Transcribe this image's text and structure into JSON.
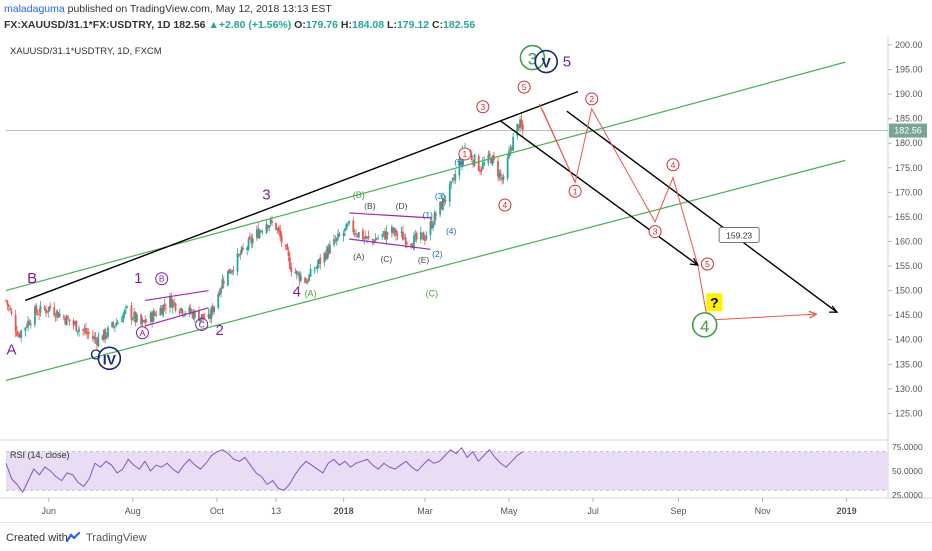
{
  "header": {
    "author": "maladaguma",
    "published": "published on TradingView.com, May 12, 2018 13:13 EST",
    "symbol": "FX:XAUUSD/31.1*FX:USDTRY, 1D",
    "last": "182.56",
    "change": "+2.80 (+1.56%)",
    "open_label": "O:",
    "open": "179.76",
    "high_label": "H:",
    "high": "184.08",
    "low_label": "L:",
    "low": "179.12",
    "close_label": "C:",
    "close": "182.56"
  },
  "footer": {
    "created_with": "Created with",
    "brand": "TradingView"
  },
  "colors": {
    "candle_up": "#26a69a",
    "candle_down": "#ef5350",
    "channel_green": "#4caf50",
    "trend_black": "#000000",
    "projection_red": "#ef5350",
    "wave_purple": "#7b1fa2",
    "wave_navy": "#1a237e",
    "wave_blue": "#1565c0",
    "rsi_line": "#7e57c2",
    "rsi_band": "#e9dcf5",
    "price_tag": "#7aa49a",
    "question_box": "#fff200"
  },
  "chart_data": [
    {
      "type": "candlestick",
      "title": "XAUUSD/31.1*USDTRY, 1D, FXCM",
      "xlabel": "",
      "ylabel": "",
      "x_tick_labels": [
        "Jun",
        "Aug",
        "Oct",
        "13",
        "2018",
        "Mar",
        "May",
        "Jul",
        "Sep",
        "Nov",
        "2019"
      ],
      "y_tick_labels": [
        "125.00",
        "130.00",
        "135.00",
        "140.00",
        "145.00",
        "150.00",
        "155.00",
        "160.00",
        "165.00",
        "170.00",
        "175.00",
        "180.00",
        "185.00",
        "190.00",
        "195.00",
        "200.00"
      ],
      "ylim": [
        120,
        201
      ],
      "last_price_label": "182.56",
      "price_path": [
        [
          "2017-05-01",
          148
        ],
        [
          "2017-05-10",
          141
        ],
        [
          "2017-05-22",
          145.5
        ],
        [
          "2017-06-02",
          146.5
        ],
        [
          "2017-06-20",
          143
        ],
        [
          "2017-07-05",
          140
        ],
        [
          "2017-07-12",
          141
        ],
        [
          "2017-07-28",
          146
        ],
        [
          "2017-08-07",
          143
        ],
        [
          "2017-08-16",
          145
        ],
        [
          "2017-08-28",
          148
        ],
        [
          "2017-09-07",
          146
        ],
        [
          "2017-09-17",
          145
        ],
        [
          "2017-09-25",
          144
        ],
        [
          "2017-10-05",
          152
        ],
        [
          "2017-10-20",
          158
        ],
        [
          "2017-11-06",
          164
        ],
        [
          "2017-11-13",
          163
        ],
        [
          "2017-11-25",
          154
        ],
        [
          "2017-12-05",
          152
        ],
        [
          "2017-12-20",
          158
        ],
        [
          "2018-01-05",
          163
        ],
        [
          "2018-01-20",
          160
        ],
        [
          "2018-02-05",
          162
        ],
        [
          "2018-02-20",
          160
        ],
        [
          "2018-03-01",
          161
        ],
        [
          "2018-03-10",
          166
        ],
        [
          "2018-03-20",
          171
        ],
        [
          "2018-03-30",
          179
        ],
        [
          "2018-04-10",
          175
        ],
        [
          "2018-04-18",
          177
        ],
        [
          "2018-04-27",
          172
        ],
        [
          "2018-05-02",
          179
        ],
        [
          "2018-05-08",
          184
        ],
        [
          "2018-05-11",
          182.56
        ]
      ],
      "series": [
        {
          "name": "channel",
          "kind": "line",
          "points": [
            [
              "2017-05-01",
              150.0
            ],
            [
              "2018-12-31",
              196.5
            ]
          ]
        },
        {
          "name": "channel",
          "kind": "line",
          "points": [
            [
              "2017-05-01",
              131.7
            ],
            [
              "2018-12-31",
              176.5
            ]
          ]
        },
        {
          "name": "trendline",
          "kind": "line",
          "points": [
            [
              "2017-05-15",
              148.0
            ],
            [
              "2018-06-20",
              190.5
            ]
          ]
        },
        {
          "name": "trendline",
          "kind": "line",
          "points": [
            [
              "2018-04-25",
              184.5
            ],
            [
              "2018-09-15",
              155.2
            ]
          ]
        },
        {
          "name": "trendline",
          "kind": "line",
          "points": [
            [
              "2018-06-12",
              186.5
            ],
            [
              "2018-12-25",
              145.6
            ]
          ]
        },
        {
          "name": "projection",
          "kind": "line",
          "points": [
            [
              "2018-05-23",
              188
            ],
            [
              "2018-06-18",
              172
            ],
            [
              "2018-06-30",
              187
            ],
            [
              "2018-08-15",
              164
            ],
            [
              "2018-08-28",
              173
            ],
            [
              "2018-09-15",
              155.2
            ],
            [
              "2018-09-22",
              144
            ],
            [
              "2018-12-10",
              145.2
            ]
          ]
        },
        {
          "name": "projection",
          "kind": "line",
          "points": [
            [
              "2018-05-25",
              187
            ],
            [
              "2018-06-18",
              172
            ]
          ]
        },
        {
          "name": "wedge",
          "kind": "line",
          "points": [
            [
              "2017-08-10",
              148.0
            ],
            [
              "2017-09-25",
              150.0
            ]
          ]
        },
        {
          "name": "wedge",
          "kind": "line",
          "points": [
            [
              "2017-08-10",
              142.8
            ],
            [
              "2017-09-25",
              146.5
            ]
          ]
        },
        {
          "name": "triangle",
          "kind": "line",
          "points": [
            [
              "2018-01-05",
              165.8
            ],
            [
              "2018-03-05",
              164.8
            ]
          ]
        },
        {
          "name": "triangle",
          "kind": "line",
          "points": [
            [
              "2018-01-05",
              160.5
            ],
            [
              "2018-03-05",
              158.4
            ]
          ]
        }
      ],
      "annotations": [
        {
          "text": "A",
          "x": "2017-05-05",
          "y": 137,
          "style": "purple-large"
        },
        {
          "text": "B",
          "x": "2017-05-20",
          "y": 151.5,
          "style": "purple-large"
        },
        {
          "text": "C",
          "x": "2017-07-05",
          "y": 136,
          "style": "navy-large"
        },
        {
          "text": "IV",
          "x": "2017-07-15",
          "y": 135.2,
          "style": "navy-circle"
        },
        {
          "text": "1",
          "x": "2017-08-05",
          "y": 151.5,
          "style": "purple-large"
        },
        {
          "text": "B",
          "x": "2017-08-22",
          "y": 151.8,
          "style": "purple-circle-small"
        },
        {
          "text": "A",
          "x": "2017-08-08",
          "y": 140.8,
          "style": "purple-circle-small"
        },
        {
          "text": "C",
          "x": "2017-09-20",
          "y": 142.5,
          "style": "purple-circle-small"
        },
        {
          "text": "2",
          "x": "2017-10-03",
          "y": 141,
          "style": "purple-large"
        },
        {
          "text": "3",
          "x": "2017-11-06",
          "y": 168.5,
          "style": "purple-large"
        },
        {
          "text": "4",
          "x": "2017-11-28",
          "y": 148.8,
          "style": "purple-large"
        },
        {
          "text": "(A)",
          "x": "2017-12-08",
          "y": 148.8,
          "style": "green-small"
        },
        {
          "text": "(B)",
          "x": "2018-01-12",
          "y": 168.8,
          "style": "green-small"
        },
        {
          "text": "(B)",
          "x": "2018-01-20",
          "y": 166.6,
          "style": "dark-small"
        },
        {
          "text": "(D)",
          "x": "2018-02-12",
          "y": 166.6,
          "style": "dark-small"
        },
        {
          "text": "(A)",
          "x": "2018-01-12",
          "y": 156.3,
          "style": "dark-small"
        },
        {
          "text": "(C)",
          "x": "2018-02-01",
          "y": 155.8,
          "style": "dark-small"
        },
        {
          "text": "(E)",
          "x": "2018-02-28",
          "y": 155.6,
          "style": "dark-small"
        },
        {
          "text": "(1)",
          "x": "2018-03-03",
          "y": 164.8,
          "style": "blue-small"
        },
        {
          "text": "(2)",
          "x": "2018-03-10",
          "y": 156.8,
          "style": "blue-small"
        },
        {
          "text": "(3)",
          "x": "2018-03-12",
          "y": 168.6,
          "style": "blue-small"
        },
        {
          "text": "(4)",
          "x": "2018-03-20",
          "y": 161.5,
          "style": "blue-small"
        },
        {
          "text": "(5)",
          "x": "2018-03-26",
          "y": 175.6,
          "style": "blue-small"
        },
        {
          "text": "(C)",
          "x": "2018-03-06",
          "y": 148.8,
          "style": "green-small"
        },
        {
          "text": "1",
          "x": "2018-03-30",
          "y": 177.2,
          "style": "red-circle"
        },
        {
          "text": "3",
          "x": "2018-04-12",
          "y": 186.8,
          "style": "red-circle"
        },
        {
          "text": "4",
          "x": "2018-04-28",
          "y": 166.8,
          "style": "red-circle"
        },
        {
          "text": "5",
          "x": "2018-05-12",
          "y": 190.8,
          "style": "red-circle"
        },
        {
          "text": "3",
          "x": "2018-05-18",
          "y": 196.2,
          "style": "green-circle-large"
        },
        {
          "text": "V",
          "x": "2018-05-28",
          "y": 195.6,
          "style": "navy-circle"
        },
        {
          "text": "5",
          "x": "2018-06-12",
          "y": 195.6,
          "style": "purple-large"
        },
        {
          "text": "1",
          "x": "2018-06-18",
          "y": 169.6,
          "style": "red-circle"
        },
        {
          "text": "2",
          "x": "2018-06-30",
          "y": 188.4,
          "style": "red-circle"
        },
        {
          "text": "3",
          "x": "2018-08-15",
          "y": 161.4,
          "style": "red-circle"
        },
        {
          "text": "4",
          "x": "2018-08-28",
          "y": 175.0,
          "style": "red-circle"
        },
        {
          "text": "5",
          "x": "2018-09-22",
          "y": 154.8,
          "style": "red-circle"
        },
        {
          "text": "4",
          "x": "2018-09-20",
          "y": 141.8,
          "style": "green-circle-large"
        },
        {
          "text": "?",
          "x": "2018-09-27",
          "y": 147.0,
          "style": "question-box"
        },
        {
          "text": "159.23",
          "x": "2018-10-15",
          "y": 160.8,
          "style": "callout"
        }
      ]
    },
    {
      "type": "line",
      "title": "RSI (14, close)",
      "xlabel": "",
      "ylabel": "",
      "y_tick_labels": [
        "75.0000",
        "50.0000",
        "25.0000"
      ],
      "ylim": [
        22,
        80
      ],
      "band": [
        30,
        70
      ],
      "values": [
        58,
        42,
        36,
        28,
        40,
        52,
        46,
        54,
        50,
        44,
        40,
        48,
        46,
        38,
        34,
        42,
        58,
        54,
        60,
        56,
        48,
        52,
        62,
        56,
        52,
        60,
        50,
        56,
        54,
        58,
        52,
        48,
        56,
        62,
        56,
        52,
        58,
        66,
        70,
        72,
        68,
        62,
        60,
        64,
        56,
        48,
        44,
        36,
        40,
        32,
        30,
        36,
        46,
        54,
        60,
        56,
        52,
        48,
        58,
        62,
        56,
        60,
        54,
        58,
        60,
        62,
        56,
        52,
        58,
        54,
        52,
        56,
        60,
        54,
        50,
        56,
        62,
        58,
        60,
        66,
        72,
        68,
        74,
        64,
        70,
        60,
        66,
        72,
        64,
        58,
        54,
        60,
        66,
        70
      ]
    }
  ]
}
